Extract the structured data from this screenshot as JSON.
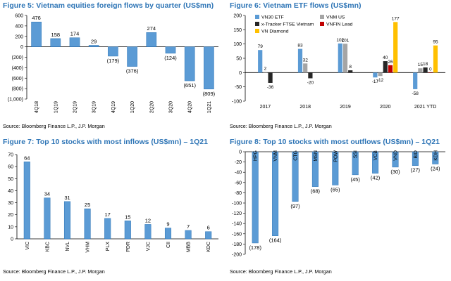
{
  "colors": {
    "title": "#2e75b6",
    "bar": "#5b9bd5",
    "bar_edge": "#2e75b6",
    "vn30": "#5b9bd5",
    "vnm_us": "#a5a5a5",
    "xtracker": "#262626",
    "vnfin": "#c00000",
    "vn_diamond": "#ffc000"
  },
  "charts": [
    {
      "title": "Figure 5: Vietnam equities foreign flows by quarter (US$mn)",
      "source": "Source: Bloomberg Finance L.P., J.P. Morgan"
    },
    {
      "title": "Figure 6: Vietnam ETF flows (US$mn)",
      "source": "Source: Bloomberg Finance L.P., J.P. Morgan"
    },
    {
      "title": "Figure 7: Top 10 stocks with most inflows (US$mn) – 1Q21",
      "source": "Source: Bloomberg Finance L.P., J.P. Morgan"
    },
    {
      "title": "Figure 8: Top 10 stocks with most outflows (US$mn) – 1Q21",
      "source": "Source: Bloomberg Finance L.P., J.P. Morgan"
    }
  ],
  "chart_data": [
    {
      "type": "bar",
      "title": "Figure 5: Vietnam equities foreign flows by quarter (US$mn)",
      "categories": [
        "4Q18",
        "1Q19",
        "2Q19",
        "3Q19",
        "4Q19",
        "1Q20",
        "2Q20",
        "3Q20",
        "4Q20",
        "1Q21"
      ],
      "values": [
        476,
        158,
        174,
        29,
        -179,
        -376,
        274,
        -124,
        -651,
        -809
      ],
      "labels": [
        "476",
        "158",
        "174",
        "29",
        "(179)",
        "(376)",
        "274",
        "(124)",
        "(651)",
        "(809)"
      ],
      "ylim": [
        -1000,
        600
      ],
      "yticks": [
        600,
        400,
        200,
        0,
        -200,
        -400,
        -600,
        -800,
        -1000
      ],
      "ytick_labels": [
        "600",
        "400",
        "200",
        "0",
        "(200)",
        "(400)",
        "(600)",
        "(800)",
        "(1,000)"
      ],
      "xlabel": "",
      "ylabel": ""
    },
    {
      "type": "bar",
      "title": "Figure 6: Vietnam ETF flows (US$mn)",
      "categories": [
        "2017",
        "2018",
        "2019",
        "2020",
        "2021 YTD"
      ],
      "series": [
        {
          "name": "VN30 ETF",
          "values": [
            79,
            83,
            102,
            -17,
            -58
          ]
        },
        {
          "name": "VNM US",
          "values": [
            2,
            32,
            101,
            -12,
            15
          ]
        },
        {
          "name": "x-Tracker FTSE Vietnam",
          "values": [
            -36,
            -20,
            8,
            40,
            18
          ]
        },
        {
          "name": "VNFIN Lead",
          "values": [
            null,
            null,
            null,
            26,
            0
          ]
        },
        {
          "name": "VN Diamond",
          "values": [
            null,
            null,
            null,
            177,
            95
          ]
        }
      ],
      "legend": [
        "VN30 ETF",
        "VNM US",
        "x-Tracker FTSE Vietnam",
        "VNFIN Lead",
        "VN Diamond"
      ],
      "legend_position": "top-left",
      "ylim": [
        -100,
        200
      ],
      "yticks": [
        200,
        150,
        100,
        50,
        0,
        -50,
        -100
      ],
      "xlabel": "",
      "ylabel": ""
    },
    {
      "type": "bar",
      "title": "Figure 7: Top 10 stocks with most inflows (US$mn) – 1Q21",
      "categories": [
        "VIC",
        "KBC",
        "NVL",
        "VHM",
        "PLX",
        "PDR",
        "VJC",
        "CII",
        "MBB",
        "KDC"
      ],
      "values": [
        64,
        34,
        31,
        25,
        17,
        15,
        12,
        9,
        7,
        6
      ],
      "labels": [
        "64",
        "34",
        "31",
        "25",
        "17",
        "15",
        "12",
        "9",
        "7",
        "6"
      ],
      "ylim": [
        0,
        70
      ],
      "yticks": [
        70,
        60,
        50,
        40,
        30,
        20,
        10,
        0
      ],
      "xlabel": "",
      "ylabel": ""
    },
    {
      "type": "bar",
      "title": "Figure 8: Top 10 stocks with most outflows (US$mn) – 1Q21",
      "categories": [
        "HPG",
        "VNM",
        "CTG",
        "MSN",
        "POW",
        "SSI",
        "VCB",
        "VND",
        "BID",
        "KDH"
      ],
      "values": [
        -178,
        -164,
        -97,
        -68,
        -65,
        -45,
        -42,
        -30,
        -27,
        -24
      ],
      "labels": [
        "(178)",
        "(164)",
        "(97)",
        "(68)",
        "(65)",
        "(45)",
        "(42)",
        "(30)",
        "(27)",
        "(24)"
      ],
      "ylim": [
        -200,
        0
      ],
      "yticks": [
        0,
        -20,
        -40,
        -60,
        -80,
        -100,
        -120,
        -140,
        -160,
        -180,
        -200
      ],
      "xlabel": "",
      "ylabel": ""
    }
  ]
}
